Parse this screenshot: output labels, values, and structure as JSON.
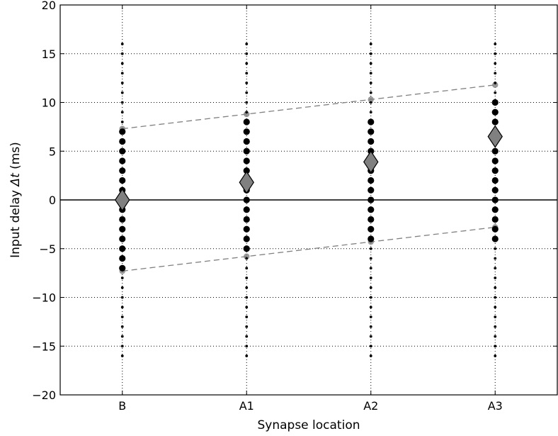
{
  "chart_data": {
    "type": "scatter",
    "xlabel": "Synapse location",
    "ylabel_prefix": "Input delay ",
    "ylabel_symbol": "Δt",
    "ylabel_suffix": " (ms)",
    "categories": [
      "B",
      "A1",
      "A2",
      "A3"
    ],
    "ylim": [
      -20,
      20
    ],
    "yticks": [
      -20,
      -15,
      -10,
      -5,
      0,
      5,
      10,
      15,
      20
    ],
    "grid": true,
    "zero_line": 0,
    "delay_range": [
      -16,
      16
    ],
    "delay_step": 1,
    "large_marker_ranges": [
      [
        -7,
        7
      ],
      [
        -5,
        8
      ],
      [
        -4,
        8
      ],
      [
        -4,
        10
      ]
    ],
    "mean_delays": [
      0.0,
      1.8,
      3.9,
      6.5
    ],
    "envelope_upper": [
      7.3,
      8.8,
      10.3,
      11.8
    ],
    "envelope_lower": [
      -7.3,
      -5.8,
      -4.3,
      -2.8
    ],
    "colors": {
      "marker": "#000000",
      "mean_marker": "#808080",
      "envelope": "#808080",
      "grid": "#000000"
    }
  }
}
